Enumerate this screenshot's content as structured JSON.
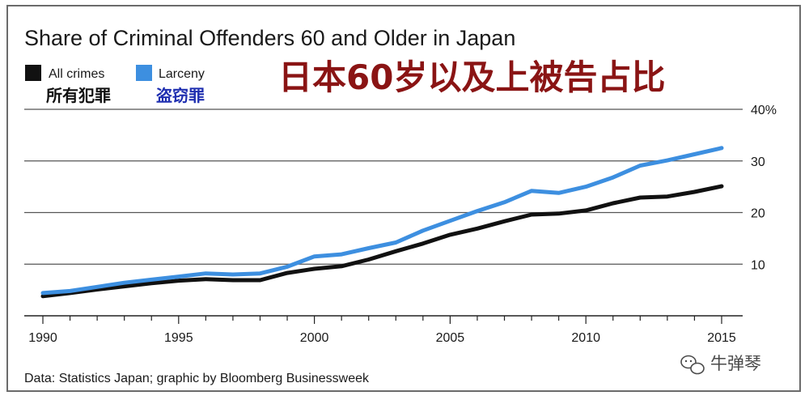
{
  "chart_data": {
    "type": "line",
    "title": "Share of Criminal Offenders 60 and Older in Japan",
    "overlay_title": "日本60岁以及上被告占比",
    "x": [
      1990,
      1991,
      1992,
      1993,
      1994,
      1995,
      1996,
      1997,
      1998,
      1999,
      2000,
      2001,
      2002,
      2003,
      2004,
      2005,
      2006,
      2007,
      2008,
      2009,
      2010,
      2011,
      2012,
      2013,
      2014,
      2015
    ],
    "series": [
      {
        "name": "All crimes",
        "name_cn": "所有犯罪",
        "color": "#111111",
        "values": [
          3.8,
          4.4,
          5.1,
          5.7,
          6.3,
          6.8,
          7.1,
          6.9,
          6.9,
          8.3,
          9.1,
          9.6,
          10.9,
          12.5,
          14.0,
          15.7,
          16.9,
          18.3,
          19.6,
          19.8,
          20.4,
          21.8,
          22.9,
          23.1,
          24.0,
          25.1
        ]
      },
      {
        "name": "Larceny",
        "name_cn": "盗窃罪",
        "color": "#3d8fe0",
        "values": [
          4.4,
          4.8,
          5.6,
          6.4,
          7.0,
          7.6,
          8.2,
          8.0,
          8.2,
          9.5,
          11.5,
          11.9,
          13.1,
          14.2,
          16.5,
          18.4,
          20.3,
          22.0,
          24.2,
          23.8,
          25.0,
          26.8,
          29.1,
          30.1,
          31.3,
          32.5
        ]
      }
    ],
    "x_ticks": [
      "1990",
      "1995",
      "2000",
      "2005",
      "2010",
      "2015"
    ],
    "y_ticks": [
      "40%",
      "30",
      "20",
      "10"
    ],
    "ylim": [
      0,
      40
    ],
    "grid": true,
    "legend_position": "top-left",
    "source": "Data: Statistics Japan; graphic by Bloomberg Businessweek"
  },
  "watermark": {
    "text": "牛弹琴",
    "icon": "wechat-icon"
  }
}
